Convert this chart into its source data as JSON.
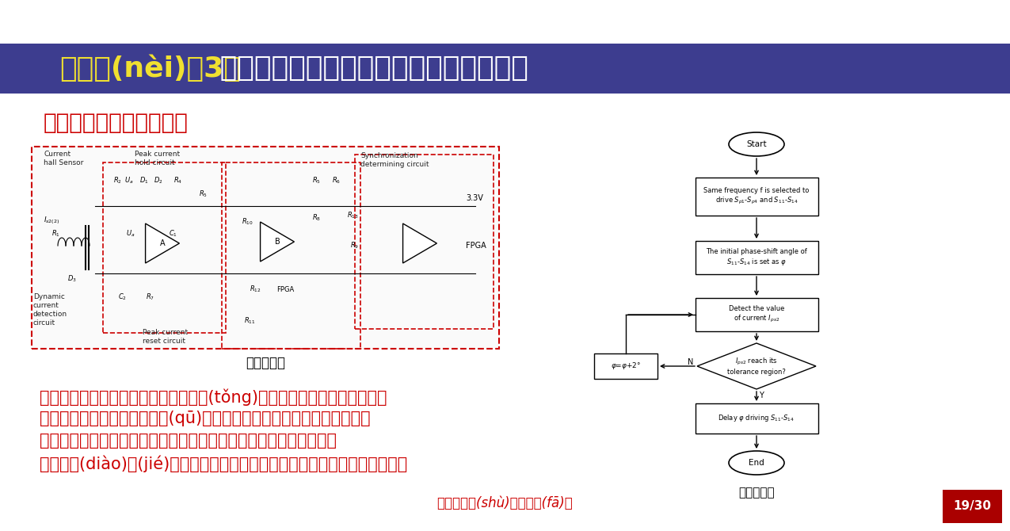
{
  "bg_color": "#ffffff",
  "title_bar_color": "#3d3d8f",
  "title_text_yellow": "研究內(nèi)容3：",
  "title_text_white": " 基于能量反向注入的推拉式功率增強模式",
  "title_yellow_color": "#f0e030",
  "title_white_color": "#ffffff",
  "title_fontsize": 26,
  "subtitle_text": "多激勵源的同步控制方法",
  "subtitle_color": "#cc0000",
  "subtitle_fontsize": 20,
  "circuit_label": "控制原理圖",
  "flowchart_label": "控制流程圖",
  "body_line1": "　　當某個副邊反向注入能量時，系統(tǒng)中有兩個激勵源，在此情況下",
  "body_line2": "，首先需要應用相同頻率來驅(qū)動兩個激勵源的逆變器，并且判斷反向",
  "body_line3": "注入的副邊輸入電流是否達到最大，如果沒有達到，則要在該副邊進",
  "body_line4": "行移相調(diào)節(jié)，直到該電流達到最大，以此來使得兩個激勵源同步。",
  "body_color": "#cc0000",
  "body_fontsize": 15,
  "footer_text": "《電工技術(shù)學報》發(fā)布",
  "footer_color": "#cc0000",
  "footer_fontsize": 12,
  "page_label": "19/30",
  "page_bg": "#aa0000",
  "page_color": "#ffffff"
}
